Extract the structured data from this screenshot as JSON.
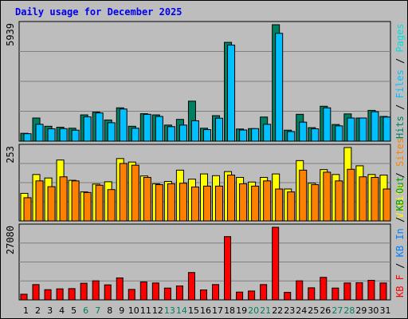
{
  "colors": {
    "pages": "#00e0e0",
    "files": "#00c0ff",
    "hits": "#008060",
    "sites": "#ff8000",
    "visits": "#ffff00",
    "kb_f": "#ff0000",
    "kb_in": "#0080ff",
    "kb_out": "#00a000",
    "weekend": "#008060",
    "weekday": "#000000",
    "title": "#0000ee"
  },
  "chart_data": {
    "type": "bar",
    "title": "Daily usage for December 2025",
    "categories": [
      "1",
      "2",
      "3",
      "4",
      "5",
      "6",
      "7",
      "8",
      "9",
      "10",
      "11",
      "12",
      "13",
      "14",
      "15",
      "16",
      "17",
      "18",
      "19",
      "20",
      "21",
      "22",
      "23",
      "24",
      "25",
      "26",
      "27",
      "28",
      "29",
      "30",
      "31"
    ],
    "weekend_days": [
      "6",
      "7",
      "13",
      "14",
      "20",
      "21",
      "27",
      "28"
    ],
    "panels": [
      {
        "id": "hits",
        "max_label": "5939",
        "ylim": [
          0,
          5939
        ],
        "legend": [
          {
            "text": "Hits",
            "color": "#008060"
          },
          {
            "text": " / ",
            "color": "#000000"
          },
          {
            "text": "Files",
            "color": "#00c0ff"
          },
          {
            "text": " / ",
            "color": "#000000"
          },
          {
            "text": "Pages",
            "color": "#00e0e0"
          }
        ],
        "series": [
          {
            "name": "Hits",
            "color": "#008060",
            "values": [
              400,
              1180,
              760,
              710,
              660,
              1340,
              1480,
              1080,
              1700,
              760,
              1400,
              1340,
              820,
              1110,
              2040,
              660,
              1300,
              5040,
              620,
              640,
              1230,
              5939,
              560,
              1370,
              690,
              1780,
              850,
              1390,
              1180,
              1570,
              1260
            ]
          },
          {
            "name": "Files",
            "color": "#00c0ff",
            "values": [
              380,
              860,
              630,
              640,
              560,
              1240,
              1440,
              940,
              1640,
              660,
              1370,
              1260,
              740,
              820,
              1040,
              590,
              1170,
              4900,
              570,
              640,
              860,
              5500,
              490,
              970,
              630,
              1700,
              780,
              1180,
              1180,
              1500,
              1230
            ]
          }
        ]
      },
      {
        "id": "visits",
        "max_label": "253",
        "ylim": [
          0,
          253
        ],
        "legend": [
          {
            "text": "Visits",
            "color": "#ffff00"
          },
          {
            "text": " / ",
            "color": "#000000"
          },
          {
            "text": "Sites",
            "color": "#ff8000"
          }
        ],
        "series": [
          {
            "name": "Visits",
            "color": "#ffff00",
            "values": [
              95,
              160,
              148,
              210,
              140,
              100,
              127,
              135,
              215,
              203,
              155,
              128,
              136,
              175,
              144,
              162,
              156,
              170,
              150,
              134,
              150,
              162,
              110,
              208,
              130,
              177,
              160,
              253,
              190,
              160,
              158
            ]
          },
          {
            "name": "Sites",
            "color": "#ff8000",
            "values": [
              80,
              138,
              118,
              152,
              138,
              98,
              123,
              108,
              198,
              192,
              150,
              125,
              128,
              130,
              117,
              120,
              120,
              158,
              128,
              120,
              138,
              110,
              100,
              175,
              125,
              168,
              138,
              178,
              152,
              150,
              110
            ]
          }
        ]
      },
      {
        "id": "kbf",
        "max_label": "27080",
        "ylim": [
          0,
          27080
        ],
        "legend": [
          {
            "text": "KB F",
            "color": "#ff0000"
          },
          {
            "text": " / ",
            "color": "#000000"
          },
          {
            "text": "KB In",
            "color": "#0080ff"
          },
          {
            "text": " / ",
            "color": "#000000"
          },
          {
            "text": "KB Out",
            "color": "#00a000"
          }
        ],
        "series": [
          {
            "name": "KB F",
            "color": "#ff0000",
            "values": [
              2100,
              5700,
              3800,
              4100,
              4200,
              6200,
              7100,
              5600,
              8200,
              3900,
              6700,
              6300,
              4400,
              5200,
              10200,
              3700,
              5700,
              23600,
              2900,
              3300,
              5700,
              27080,
              2800,
              7100,
              4500,
              8400,
              4400,
              6300,
              6400,
              7300,
              6300
            ]
          }
        ]
      }
    ]
  }
}
